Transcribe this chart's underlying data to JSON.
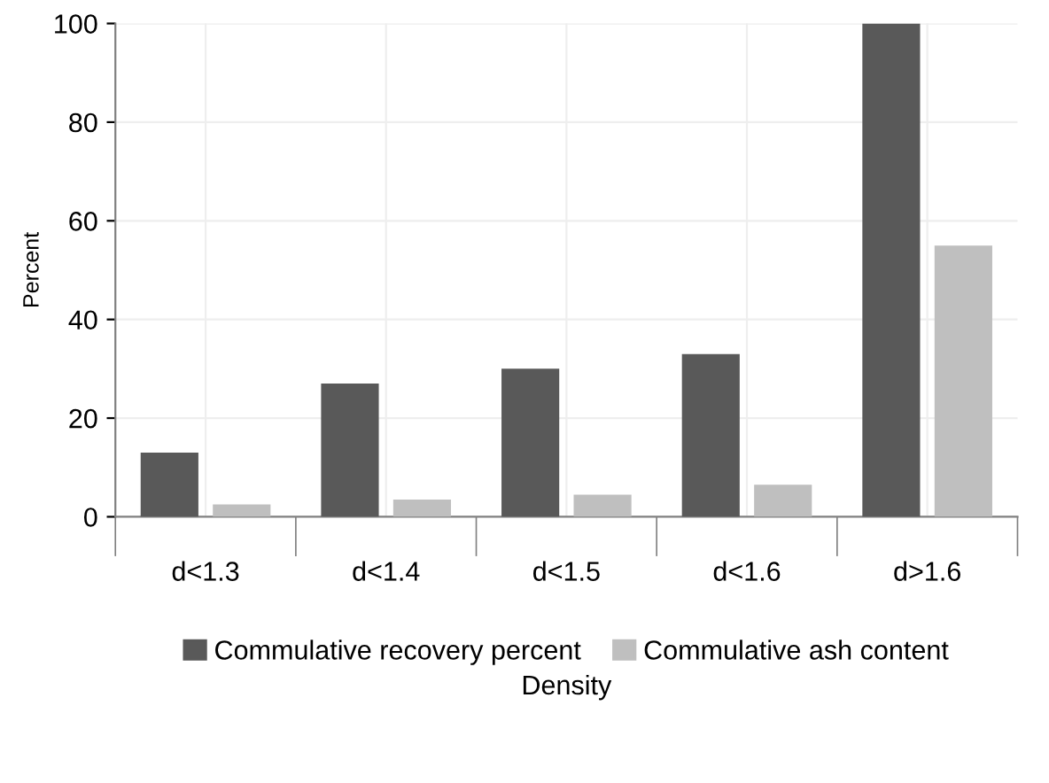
{
  "chart_data": {
    "type": "bar",
    "xlabel": "Density",
    "ylabel": "Percent",
    "categories": [
      "d<1.3",
      "d<1.4",
      "d<1.5",
      "d<1.6",
      "d>1.6"
    ],
    "series": [
      {
        "name": "Commulative recovery percent",
        "color": "#595959",
        "values": [
          13,
          27,
          30,
          33,
          100
        ]
      },
      {
        "name": "Commulative ash content",
        "color": "#bfbfbf",
        "values": [
          2.5,
          3.5,
          4.5,
          6.5,
          55
        ]
      }
    ],
    "ylim": [
      0,
      100
    ],
    "yticks": [
      0,
      20,
      40,
      60,
      80,
      100
    ],
    "grid": true,
    "legend": "bottom"
  }
}
